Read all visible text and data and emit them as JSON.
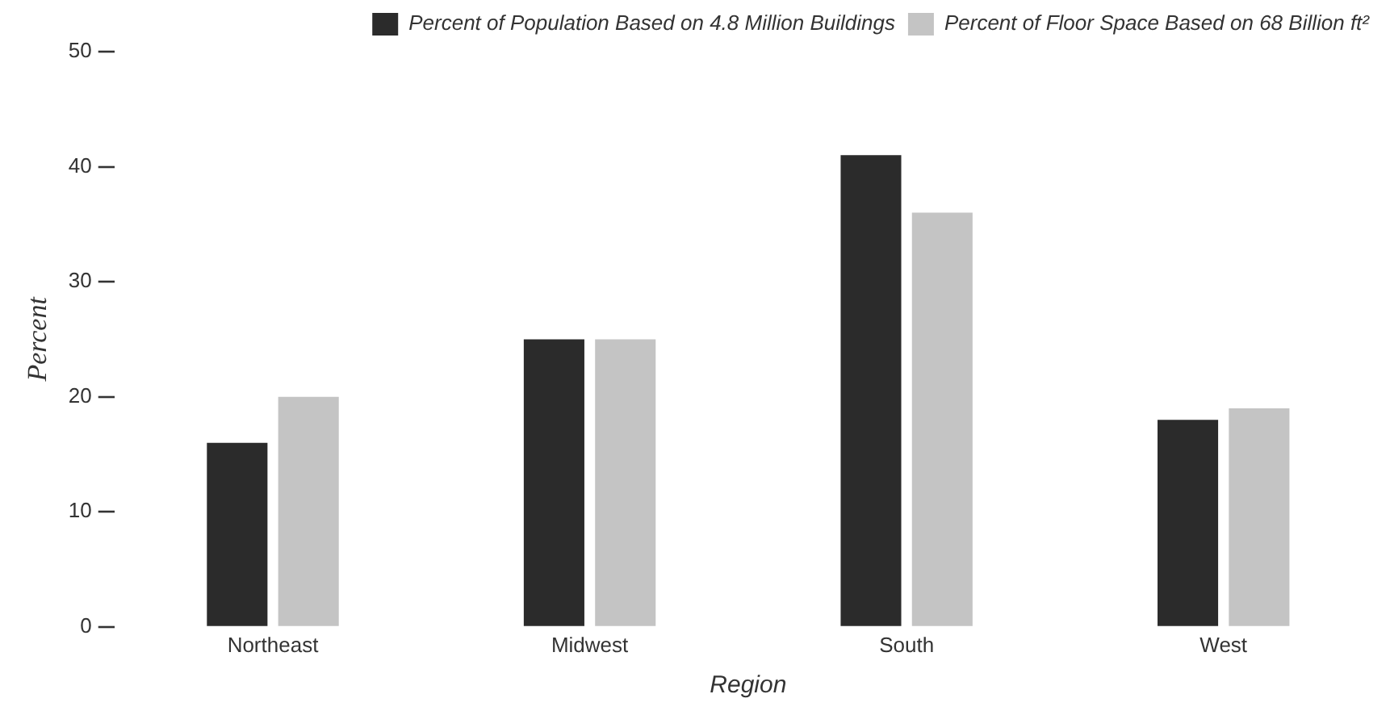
{
  "chart_data": {
    "type": "bar",
    "xlabel": "Region",
    "ylabel": "Percent",
    "categories": [
      "Northeast",
      "Midwest",
      "South",
      "West"
    ],
    "series": [
      {
        "name": "Percent of Population Based on 4.8 Million Buildings",
        "color": "#2b2b2b",
        "values": [
          16,
          25,
          41,
          18
        ]
      },
      {
        "name": "Percent of Floor Space Based on 68 Billion ft²",
        "color": "#c4c4c4",
        "values": [
          20,
          25,
          36,
          19
        ]
      }
    ],
    "ylim": [
      0,
      50
    ],
    "yticks": [
      0,
      10,
      20,
      30,
      40,
      50
    ],
    "grid": false,
    "legend": "top right"
  }
}
